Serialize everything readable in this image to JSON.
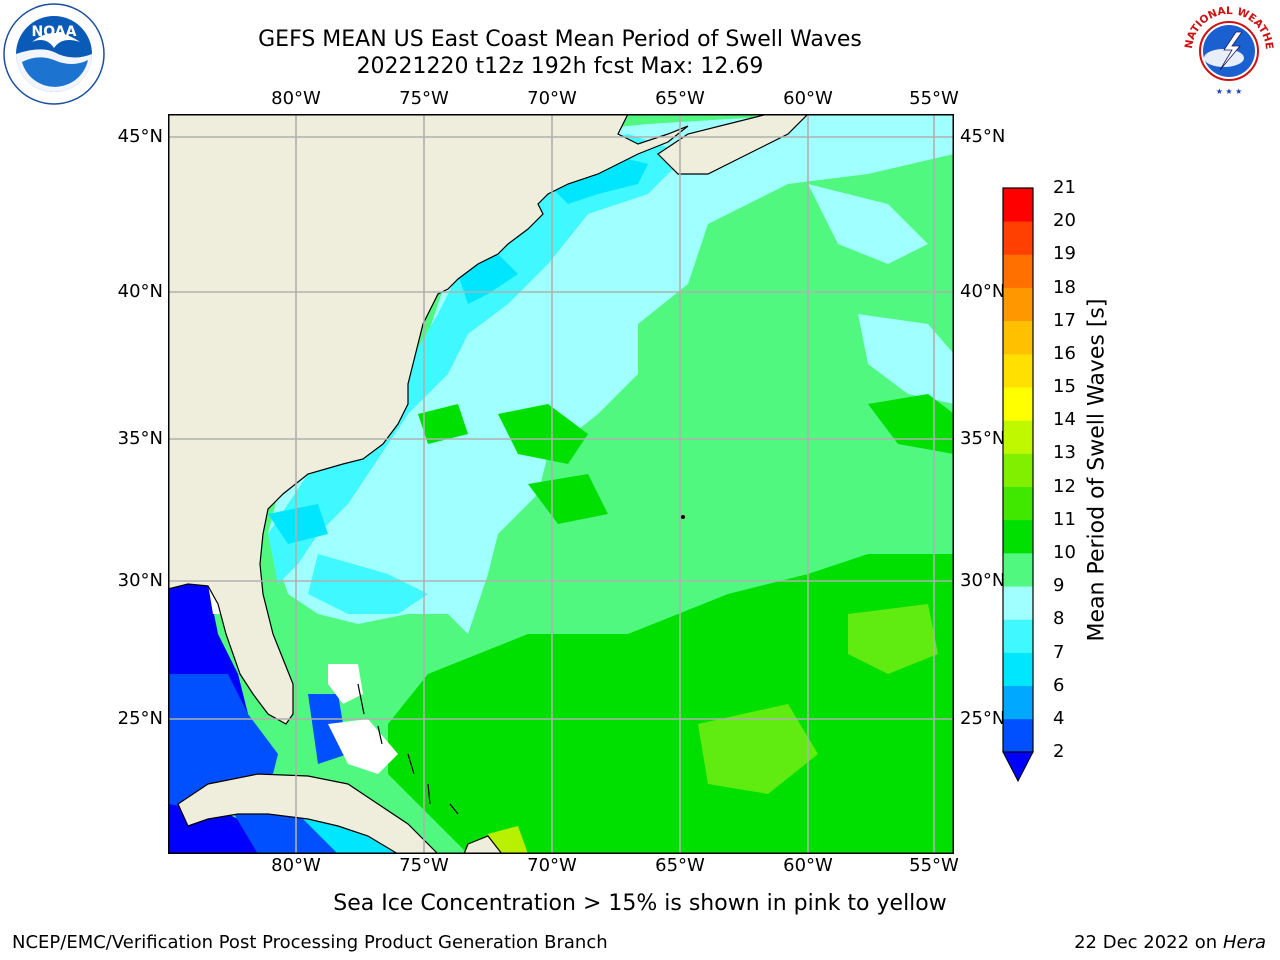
{
  "title": {
    "line1": "GEFS MEAN US East Coast Mean Period of Swell Waves",
    "line2": "20221220 t12z 192h fcst   Max: 12.69"
  },
  "map": {
    "lon_labels": [
      "80°W",
      "75°W",
      "70°W",
      "65°W",
      "60°W",
      "55°W"
    ],
    "lat_labels": [
      "45°N",
      "40°N",
      "35°N",
      "30°N",
      "25°N"
    ],
    "land_color": "#efeedc",
    "grid_color": "#b0b0b0"
  },
  "colorbar": {
    "title": "Mean Period of Swell Waves [s]",
    "levels": [
      "2",
      "4",
      "6",
      "7",
      "8",
      "9",
      "10",
      "11",
      "12",
      "13",
      "14",
      "15",
      "16",
      "17",
      "18",
      "19",
      "20",
      "21"
    ],
    "colors": [
      "#0050ff",
      "#00a8ff",
      "#00e6ff",
      "#40f8ff",
      "#a0ffff",
      "#50f880",
      "#00e000",
      "#40e800",
      "#80f000",
      "#c0f800",
      "#ffff00",
      "#ffe000",
      "#ffc000",
      "#ff9800",
      "#ff7000",
      "#ff4000",
      "#ff0000"
    ],
    "under_color": "#0000ff"
  },
  "footnote": "Sea Ice Concentration > 15% is shown in pink to yellow",
  "footer": {
    "credit": "NCEP/EMC/Verification Post Processing Product Generation Branch",
    "date": "22 Dec 2022 on",
    "host": "Hera"
  },
  "logos": {
    "noaa_text": "NOAA",
    "nws_text": "NATIONAL WEATHER SERVICE"
  }
}
